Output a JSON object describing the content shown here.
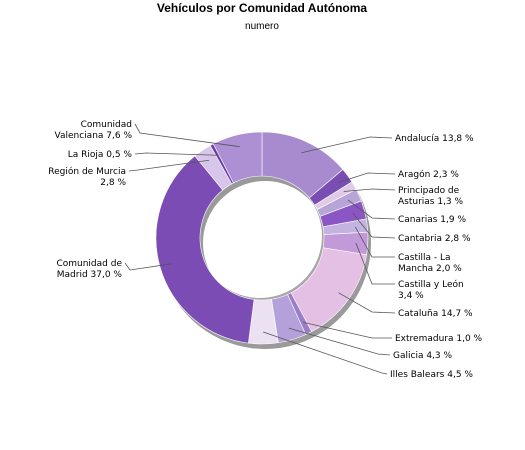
{
  "chart_data": {
    "type": "pie",
    "variant": "donut",
    "title": "Vehículos por Comunidad Autónoma",
    "subtitle": "numero",
    "series": [
      {
        "label": "Andalucía 13,8 %",
        "value": 13.8,
        "color": "#a88bcf"
      },
      {
        "label": "Aragón 2,3 %",
        "value": 2.3,
        "color": "#7a4db3"
      },
      {
        "label": "Principado de Asturias 1,3 %",
        "value": 1.3,
        "color": "#dfcbe8"
      },
      {
        "label": "Canarias 1,9 %",
        "value": 1.9,
        "color": "#b8a5d8"
      },
      {
        "label": "Cantabria 2,8 %",
        "value": 2.8,
        "color": "#8c55c4"
      },
      {
        "label": "Castilla - La Mancha 2,0 %",
        "value": 2.0,
        "color": "#c3b3e0"
      },
      {
        "label": "Castilla y León 3,4 %",
        "value": 3.4,
        "color": "#c29ad9"
      },
      {
        "label": "Cataluña 14,7 %",
        "value": 14.7,
        "color": "#e4c0e4"
      },
      {
        "label": "Extremadura 1,0 %",
        "value": 1.0,
        "color": "#9a7ec8"
      },
      {
        "label": "Galicia 4,3 %",
        "value": 4.3,
        "color": "#b4a0da"
      },
      {
        "label": "Illes Balears 4,5 %",
        "value": 4.5,
        "color": "#ece0f3"
      },
      {
        "label": "Comunidad de Madrid 37,0 %",
        "value": 37.0,
        "color": "#7a4cb4"
      },
      {
        "label": "Región de Murcia 2,8 %",
        "value": 2.8,
        "color": "#d7c6ea"
      },
      {
        "label": "La Rioja 0,5 %",
        "value": 0.5,
        "color": "#6a3ea8"
      },
      {
        "label": "Comunidad Valenciana 7,6 %",
        "value": 7.6,
        "color": "#ad8fd4"
      }
    ]
  }
}
